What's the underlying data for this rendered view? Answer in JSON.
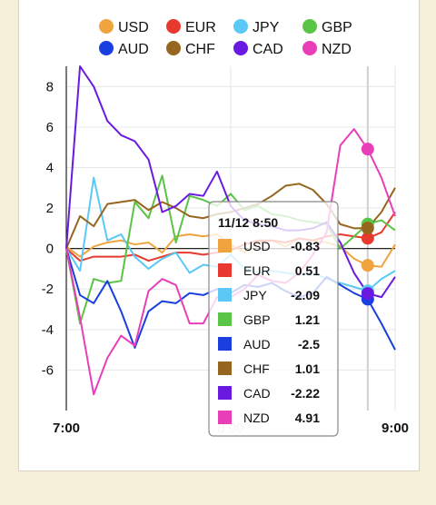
{
  "chart_data": {
    "type": "line",
    "x": [
      "7:00",
      "7:05",
      "7:10",
      "7:15",
      "7:20",
      "7:25",
      "7:30",
      "7:35",
      "7:40",
      "7:45",
      "7:50",
      "7:55",
      "8:00",
      "8:05",
      "8:10",
      "8:15",
      "8:20",
      "8:25",
      "8:30",
      "8:35",
      "8:40",
      "8:45",
      "8:50",
      "8:55",
      "9:00"
    ],
    "x_ticks": [
      "7:00",
      "8:00",
      "9:00"
    ],
    "x_ticks_faded": [
      "8:00"
    ],
    "y_ticks": [
      -6,
      -4,
      -2,
      0,
      2,
      4,
      6,
      8
    ],
    "ylim": [
      -8,
      9
    ],
    "grid": true,
    "legend_placement": "top",
    "series": [
      {
        "name": "USD",
        "color": "#f0a440",
        "values": [
          0.1,
          -0.4,
          0.1,
          0.3,
          0.4,
          0.2,
          0.3,
          -0.2,
          0.6,
          0.7,
          0.6,
          0.7,
          0.2,
          -0.2,
          0.3,
          0.4,
          0.1,
          0.5,
          0.4,
          0.3,
          0.1,
          -0.5,
          -0.83,
          -0.9,
          0.2
        ]
      },
      {
        "name": "EUR",
        "color": "#e8392e",
        "values": [
          0.0,
          -0.6,
          -0.4,
          -0.4,
          -0.4,
          -0.3,
          -0.6,
          -0.4,
          -0.2,
          -0.2,
          -0.3,
          -0.2,
          -0.1,
          0.2,
          0.4,
          0.4,
          0.3,
          0.5,
          0.4,
          0.6,
          0.7,
          0.6,
          0.51,
          0.8,
          1.8
        ]
      },
      {
        "name": "JPY",
        "color": "#5bc8f5",
        "values": [
          0.0,
          -1.1,
          3.5,
          0.4,
          0.7,
          -0.4,
          -1.0,
          -0.5,
          -0.2,
          -1.2,
          -0.8,
          -0.9,
          -0.3,
          -1.0,
          -1.2,
          -1.1,
          -1.2,
          -1.3,
          -1.2,
          -1.5,
          -1.7,
          -1.9,
          -2.09,
          -1.5,
          -1.1
        ]
      },
      {
        "name": "GBP",
        "color": "#5ac446",
        "values": [
          0.0,
          -3.7,
          -1.5,
          -1.7,
          -1.6,
          2.3,
          1.5,
          3.6,
          0.3,
          2.6,
          2.4,
          2.1,
          2.7,
          1.9,
          2.1,
          1.7,
          1.6,
          1.4,
          1.3,
          1.2,
          0.0,
          0.6,
          1.21,
          1.4,
          0.9
        ]
      },
      {
        "name": "AUD",
        "color": "#1a3fe0",
        "values": [
          0.0,
          -2.3,
          -2.7,
          -1.6,
          -3.1,
          -4.9,
          -3.1,
          -2.6,
          -2.7,
          -2.2,
          -2.3,
          -2.0,
          -2.2,
          -1.8,
          -1.9,
          -1.7,
          -2.1,
          -2.4,
          -2.2,
          -1.4,
          -1.8,
          -2.2,
          -2.5,
          -3.7,
          -5.0
        ]
      },
      {
        "name": "CHF",
        "color": "#96651e",
        "values": [
          0.0,
          1.6,
          1.1,
          2.2,
          2.3,
          2.4,
          1.9,
          2.3,
          2.0,
          1.6,
          1.5,
          1.7,
          1.8,
          2.0,
          2.2,
          2.6,
          3.1,
          3.2,
          2.9,
          2.2,
          1.2,
          1.0,
          1.01,
          1.8,
          3.0
        ]
      },
      {
        "name": "CAD",
        "color": "#6a1ae0",
        "values": [
          0.0,
          9.0,
          8.0,
          6.3,
          5.6,
          5.3,
          4.4,
          1.8,
          2.1,
          2.7,
          2.6,
          3.8,
          2.1,
          1.4,
          1.2,
          1.1,
          0.9,
          0.9,
          1.0,
          1.3,
          0.3,
          -1.2,
          -2.22,
          -2.4,
          -1.4
        ]
      },
      {
        "name": "NZD",
        "color": "#e83fb8",
        "values": [
          0.0,
          -3.4,
          -7.2,
          -5.4,
          -4.3,
          -4.8,
          -2.1,
          -1.5,
          -1.8,
          -3.7,
          -3.7,
          -2.4,
          -2.4,
          -2.0,
          -1.3,
          -1.6,
          -1.7,
          -1.2,
          -0.3,
          0.8,
          5.1,
          5.9,
          4.91,
          3.5,
          1.6
        ]
      }
    ],
    "highlight_index": 22
  },
  "tooltip": {
    "title": "11/12 8:50",
    "rows": [
      {
        "label": "USD",
        "value": "-0.83",
        "color": "#f0a440"
      },
      {
        "label": "EUR",
        "value": "0.51",
        "color": "#e8392e"
      },
      {
        "label": "JPY",
        "value": "-2.09",
        "color": "#5bc8f5"
      },
      {
        "label": "GBP",
        "value": "1.21",
        "color": "#5ac446"
      },
      {
        "label": "AUD",
        "value": "-2.5",
        "color": "#1a3fe0"
      },
      {
        "label": "CHF",
        "value": "1.01",
        "color": "#96651e"
      },
      {
        "label": "CAD",
        "value": "-2.22",
        "color": "#6a1ae0"
      },
      {
        "label": "NZD",
        "value": "4.91",
        "color": "#e83fb8"
      }
    ]
  }
}
